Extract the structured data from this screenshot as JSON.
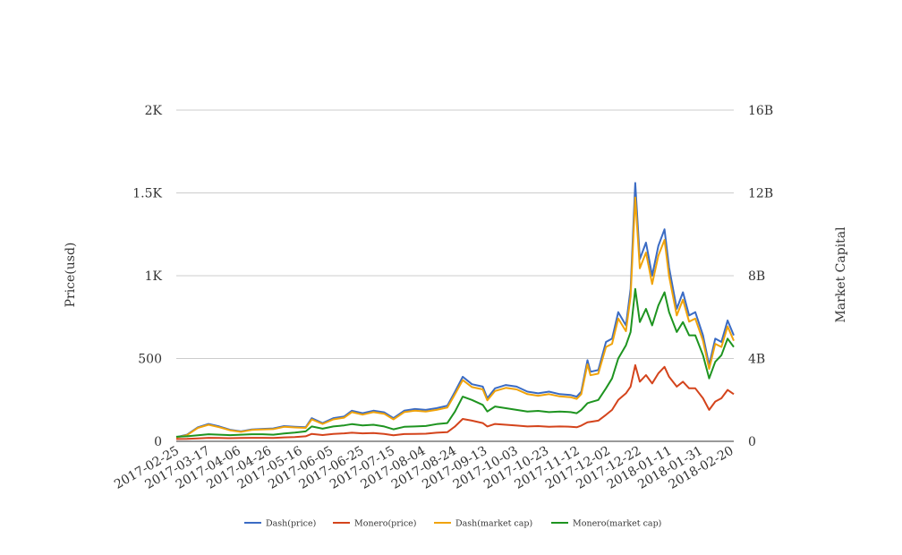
{
  "chart_data": {
    "type": "line",
    "title": "",
    "xlabel": "",
    "ylabel": "Price(usd)",
    "y2label": "Market Capital",
    "ylim": [
      0,
      2000
    ],
    "y2lim": [
      0,
      16
    ],
    "yticks": [
      {
        "v": 0,
        "label": "0"
      },
      {
        "v": 500,
        "label": "500"
      },
      {
        "v": 1000,
        "label": "1K"
      },
      {
        "v": 1500,
        "label": "1.5K"
      },
      {
        "v": 2000,
        "label": "2K"
      }
    ],
    "y2ticks": [
      {
        "v": 0,
        "label": "0"
      },
      {
        "v": 4,
        "label": "4B"
      },
      {
        "v": 8,
        "label": "8B"
      },
      {
        "v": 12,
        "label": "12B"
      },
      {
        "v": 16,
        "label": "16B"
      }
    ],
    "xlim": [
      "2017-02-25",
      "2018-02-22"
    ],
    "xticks": [
      "2017-02-25",
      "2017-03-17",
      "2017-04-06",
      "2017-04-26",
      "2017-05-16",
      "2017-06-05",
      "2017-06-25",
      "2017-07-15",
      "2017-08-04",
      "2017-08-24",
      "2017-09-13",
      "2017-10-03",
      "2017-10-23",
      "2017-11-12",
      "2017-12-02",
      "2017-12-22",
      "2018-01-11",
      "2018-01-31",
      "2018-02-20"
    ],
    "grid": true,
    "legend_position": "bottom-center",
    "x": [
      "2017-02-25",
      "2017-03-04",
      "2017-03-11",
      "2017-03-18",
      "2017-03-25",
      "2017-04-01",
      "2017-04-08",
      "2017-04-15",
      "2017-04-22",
      "2017-04-29",
      "2017-05-06",
      "2017-05-13",
      "2017-05-20",
      "2017-05-24",
      "2017-05-31",
      "2017-06-07",
      "2017-06-14",
      "2017-06-19",
      "2017-06-26",
      "2017-07-03",
      "2017-07-10",
      "2017-07-16",
      "2017-07-23",
      "2017-07-30",
      "2017-08-06",
      "2017-08-13",
      "2017-08-20",
      "2017-08-25",
      "2017-08-30",
      "2017-09-05",
      "2017-09-12",
      "2017-09-15",
      "2017-09-20",
      "2017-09-27",
      "2017-10-04",
      "2017-10-11",
      "2017-10-18",
      "2017-10-25",
      "2017-11-01",
      "2017-11-08",
      "2017-11-12",
      "2017-11-15",
      "2017-11-19",
      "2017-11-21",
      "2017-11-26",
      "2017-12-01",
      "2017-12-05",
      "2017-12-09",
      "2017-12-14",
      "2017-12-17",
      "2017-12-20",
      "2017-12-23",
      "2017-12-27",
      "2017-12-31",
      "2018-01-04",
      "2018-01-08",
      "2018-01-11",
      "2018-01-16",
      "2018-01-20",
      "2018-01-24",
      "2018-01-28",
      "2018-02-02",
      "2018-02-06",
      "2018-02-10",
      "2018-02-14",
      "2018-02-18",
      "2018-02-22"
    ],
    "series": [
      {
        "name": "Dash(price)",
        "axis": "left",
        "color": "#3a6bc4",
        "values": [
          25,
          40,
          85,
          105,
          90,
          70,
          60,
          72,
          75,
          78,
          92,
          88,
          85,
          140,
          110,
          140,
          150,
          185,
          170,
          185,
          175,
          140,
          185,
          195,
          190,
          200,
          215,
          300,
          390,
          345,
          330,
          260,
          320,
          340,
          330,
          300,
          290,
          300,
          285,
          280,
          270,
          300,
          490,
          420,
          430,
          600,
          620,
          780,
          700,
          920,
          1560,
          1100,
          1200,
          1000,
          1180,
          1280,
          1050,
          800,
          900,
          760,
          780,
          640,
          460,
          620,
          600,
          730,
          640
        ]
      },
      {
        "name": "Monero(price)",
        "axis": "left",
        "color": "#d4441c",
        "values": [
          14,
          15,
          18,
          21,
          20,
          19,
          20,
          21,
          21,
          20,
          24,
          26,
          30,
          45,
          38,
          45,
          48,
          52,
          48,
          50,
          45,
          36,
          44,
          45,
          46,
          52,
          55,
          90,
          135,
          125,
          110,
          90,
          105,
          100,
          95,
          90,
          92,
          88,
          90,
          88,
          85,
          95,
          115,
          118,
          125,
          160,
          190,
          250,
          290,
          330,
          460,
          360,
          400,
          350,
          410,
          450,
          390,
          330,
          360,
          320,
          320,
          260,
          190,
          240,
          260,
          310,
          285
        ]
      },
      {
        "name": "Dash(market cap)",
        "axis": "right",
        "color": "#f0a30a",
        "values": [
          0.19,
          0.3,
          0.65,
          0.8,
          0.68,
          0.53,
          0.46,
          0.55,
          0.57,
          0.59,
          0.7,
          0.67,
          0.65,
          1.06,
          0.84,
          1.06,
          1.14,
          1.41,
          1.29,
          1.41,
          1.33,
          1.06,
          1.41,
          1.48,
          1.44,
          1.52,
          1.63,
          2.28,
          2.96,
          2.62,
          2.51,
          1.98,
          2.43,
          2.58,
          2.51,
          2.28,
          2.2,
          2.28,
          2.17,
          2.13,
          2.05,
          2.28,
          3.72,
          3.19,
          3.27,
          4.56,
          4.71,
          5.93,
          5.32,
          6.99,
          11.78,
          8.36,
          9.12,
          7.6,
          8.97,
          9.73,
          7.98,
          6.08,
          6.84,
          5.78,
          5.93,
          4.86,
          3.5,
          4.71,
          4.56,
          5.55,
          4.86
        ]
      },
      {
        "name": "Monero(market cap)",
        "axis": "right",
        "color": "#1e9420",
        "values": [
          0.22,
          0.24,
          0.29,
          0.34,
          0.32,
          0.3,
          0.32,
          0.34,
          0.34,
          0.32,
          0.38,
          0.42,
          0.48,
          0.72,
          0.61,
          0.72,
          0.77,
          0.83,
          0.77,
          0.8,
          0.72,
          0.58,
          0.7,
          0.72,
          0.74,
          0.83,
          0.88,
          1.44,
          2.16,
          2.0,
          1.76,
          1.44,
          1.68,
          1.6,
          1.52,
          1.44,
          1.47,
          1.41,
          1.44,
          1.41,
          1.36,
          1.52,
          1.84,
          1.89,
          2.0,
          2.56,
          3.04,
          4.0,
          4.64,
          5.28,
          7.36,
          5.76,
          6.4,
          5.6,
          6.56,
          7.2,
          6.24,
          5.28,
          5.76,
          5.12,
          5.12,
          4.16,
          3.04,
          3.84,
          4.16,
          4.96,
          4.56
        ]
      }
    ]
  }
}
